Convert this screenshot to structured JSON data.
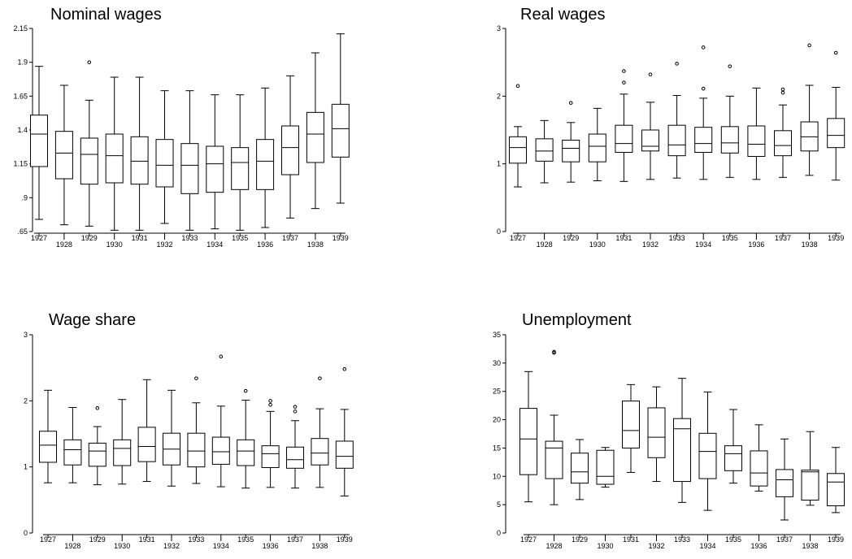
{
  "chart_data": [
    {
      "type": "box",
      "title": "Nominal wages",
      "categories": [
        "1927",
        "1928",
        "1929",
        "1930",
        "1931",
        "1932",
        "1933",
        "1934",
        "1935",
        "1936",
        "1937",
        "1938",
        "1939"
      ],
      "y_ticks": [
        ".65",
        ".9",
        "1.15",
        "1.4",
        "1.65",
        "1.9",
        "2.15"
      ],
      "ylim": [
        0.65,
        2.15
      ],
      "boxes": [
        {
          "min": 0.74,
          "q1": 1.13,
          "median": 1.37,
          "q3": 1.51,
          "max": 1.87,
          "outliers": []
        },
        {
          "min": 0.7,
          "q1": 1.04,
          "median": 1.23,
          "q3": 1.39,
          "max": 1.73,
          "outliers": []
        },
        {
          "min": 0.69,
          "q1": 1.0,
          "median": 1.22,
          "q3": 1.34,
          "max": 1.62,
          "outliers": [
            1.9
          ]
        },
        {
          "min": 0.66,
          "q1": 1.01,
          "median": 1.21,
          "q3": 1.37,
          "max": 1.79,
          "outliers": []
        },
        {
          "min": 0.66,
          "q1": 1.0,
          "median": 1.17,
          "q3": 1.35,
          "max": 1.79,
          "outliers": []
        },
        {
          "min": 0.71,
          "q1": 0.98,
          "median": 1.14,
          "q3": 1.33,
          "max": 1.69,
          "outliers": []
        },
        {
          "min": 0.66,
          "q1": 0.93,
          "median": 1.14,
          "q3": 1.3,
          "max": 1.69,
          "outliers": []
        },
        {
          "min": 0.67,
          "q1": 0.94,
          "median": 1.15,
          "q3": 1.28,
          "max": 1.66,
          "outliers": []
        },
        {
          "min": 0.66,
          "q1": 0.96,
          "median": 1.16,
          "q3": 1.27,
          "max": 1.66,
          "outliers": []
        },
        {
          "min": 0.68,
          "q1": 0.96,
          "median": 1.17,
          "q3": 1.33,
          "max": 1.71,
          "outliers": []
        },
        {
          "min": 0.75,
          "q1": 1.07,
          "median": 1.27,
          "q3": 1.43,
          "max": 1.8,
          "outliers": []
        },
        {
          "min": 0.82,
          "q1": 1.16,
          "median": 1.37,
          "q3": 1.53,
          "max": 1.97,
          "outliers": []
        },
        {
          "min": 0.86,
          "q1": 1.2,
          "median": 1.41,
          "q3": 1.59,
          "max": 2.11,
          "outliers": []
        }
      ]
    },
    {
      "type": "box",
      "title": "Real wages",
      "categories": [
        "1927",
        "1928",
        "1929",
        "1930",
        "1931",
        "1932",
        "1933",
        "1934",
        "1935",
        "1936",
        "1937",
        "1938",
        "1939"
      ],
      "y_ticks": [
        "0",
        "1",
        "2",
        "3"
      ],
      "ylim": [
        0,
        3
      ],
      "boxes": [
        {
          "min": 0.66,
          "q1": 1.01,
          "median": 1.24,
          "q3": 1.4,
          "max": 1.55,
          "outliers": [
            2.15
          ]
        },
        {
          "min": 0.72,
          "q1": 1.04,
          "median": 1.19,
          "q3": 1.37,
          "max": 1.64,
          "outliers": []
        },
        {
          "min": 0.73,
          "q1": 1.03,
          "median": 1.23,
          "q3": 1.35,
          "max": 1.61,
          "outliers": [
            1.9
          ]
        },
        {
          "min": 0.75,
          "q1": 1.03,
          "median": 1.26,
          "q3": 1.44,
          "max": 1.82,
          "outliers": []
        },
        {
          "min": 0.74,
          "q1": 1.17,
          "median": 1.3,
          "q3": 1.57,
          "max": 2.03,
          "outliers": [
            2.2,
            2.37
          ]
        },
        {
          "min": 0.77,
          "q1": 1.19,
          "median": 1.26,
          "q3": 1.5,
          "max": 1.91,
          "outliers": [
            2.32
          ]
        },
        {
          "min": 0.79,
          "q1": 1.12,
          "median": 1.28,
          "q3": 1.57,
          "max": 2.01,
          "outliers": [
            2.48
          ]
        },
        {
          "min": 0.77,
          "q1": 1.17,
          "median": 1.3,
          "q3": 1.54,
          "max": 1.97,
          "outliers": [
            2.11,
            2.72
          ]
        },
        {
          "min": 0.8,
          "q1": 1.16,
          "median": 1.31,
          "q3": 1.55,
          "max": 2.0,
          "outliers": [
            2.44
          ]
        },
        {
          "min": 0.77,
          "q1": 1.11,
          "median": 1.29,
          "q3": 1.56,
          "max": 2.12,
          "outliers": []
        },
        {
          "min": 0.8,
          "q1": 1.12,
          "median": 1.27,
          "q3": 1.49,
          "max": 1.87,
          "outliers": [
            2.05,
            2.1
          ]
        },
        {
          "min": 0.83,
          "q1": 1.19,
          "median": 1.4,
          "q3": 1.62,
          "max": 2.16,
          "outliers": [
            2.75
          ]
        },
        {
          "min": 0.76,
          "q1": 1.24,
          "median": 1.42,
          "q3": 1.67,
          "max": 2.13,
          "outliers": [
            2.64
          ]
        }
      ]
    },
    {
      "type": "box",
      "title": "Wage share",
      "categories": [
        "1927",
        "1928",
        "1929",
        "1930",
        "1931",
        "1932",
        "1933",
        "1934",
        "1935",
        "1936",
        "1937",
        "1938",
        "1939"
      ],
      "y_ticks": [
        "0",
        "1",
        "2",
        "3"
      ],
      "ylim": [
        0,
        3
      ],
      "boxes": [
        {
          "min": 0.76,
          "q1": 1.07,
          "median": 1.33,
          "q3": 1.54,
          "max": 2.16,
          "outliers": []
        },
        {
          "min": 0.76,
          "q1": 1.03,
          "median": 1.26,
          "q3": 1.41,
          "max": 1.9,
          "outliers": []
        },
        {
          "min": 0.73,
          "q1": 1.01,
          "median": 1.24,
          "q3": 1.36,
          "max": 1.61,
          "outliers": [
            1.89
          ]
        },
        {
          "min": 0.74,
          "q1": 1.02,
          "median": 1.28,
          "q3": 1.41,
          "max": 2.02,
          "outliers": []
        },
        {
          "min": 0.78,
          "q1": 1.08,
          "median": 1.31,
          "q3": 1.6,
          "max": 2.32,
          "outliers": []
        },
        {
          "min": 0.71,
          "q1": 1.03,
          "median": 1.27,
          "q3": 1.51,
          "max": 2.16,
          "outliers": []
        },
        {
          "min": 0.75,
          "q1": 1.0,
          "median": 1.24,
          "q3": 1.51,
          "max": 1.97,
          "outliers": [
            2.34
          ]
        },
        {
          "min": 0.7,
          "q1": 1.04,
          "median": 1.23,
          "q3": 1.45,
          "max": 1.92,
          "outliers": [
            2.67
          ]
        },
        {
          "min": 0.68,
          "q1": 1.02,
          "median": 1.24,
          "q3": 1.41,
          "max": 2.01,
          "outliers": [
            2.15
          ]
        },
        {
          "min": 0.69,
          "q1": 0.99,
          "median": 1.2,
          "q3": 1.32,
          "max": 1.84,
          "outliers": [
            1.94,
            2.0
          ]
        },
        {
          "min": 0.68,
          "q1": 0.98,
          "median": 1.11,
          "q3": 1.3,
          "max": 1.7,
          "outliers": [
            1.84,
            1.91
          ]
        },
        {
          "min": 0.69,
          "q1": 1.03,
          "median": 1.21,
          "q3": 1.43,
          "max": 1.88,
          "outliers": [
            2.34
          ]
        },
        {
          "min": 0.56,
          "q1": 0.98,
          "median": 1.16,
          "q3": 1.39,
          "max": 1.87,
          "outliers": [
            2.48
          ]
        }
      ]
    },
    {
      "type": "box",
      "title": "Unemployment",
      "categories": [
        "1927",
        "1928",
        "1929",
        "1930",
        "1931",
        "1932",
        "1933",
        "1934",
        "1935",
        "1936",
        "1937",
        "1938",
        "1939"
      ],
      "y_ticks": [
        "0",
        "5",
        "10",
        "15",
        "20",
        "25",
        "30",
        "35"
      ],
      "ylim": [
        0,
        35
      ],
      "boxes": [
        {
          "min": 5.5,
          "q1": 10.3,
          "median": 16.6,
          "q3": 22.0,
          "max": 28.5,
          "outliers": []
        },
        {
          "min": 5.0,
          "q1": 9.6,
          "median": 15.0,
          "q3": 16.2,
          "max": 20.8,
          "outliers": [
            31.8,
            32.0
          ]
        },
        {
          "min": 5.9,
          "q1": 8.8,
          "median": 10.8,
          "q3": 14.1,
          "max": 16.5,
          "outliers": []
        },
        {
          "min": 8.1,
          "q1": 8.6,
          "median": 10.0,
          "q3": 14.6,
          "max": 15.1,
          "outliers": []
        },
        {
          "min": 10.7,
          "q1": 15.0,
          "median": 18.1,
          "q3": 23.3,
          "max": 26.2,
          "outliers": []
        },
        {
          "min": 9.1,
          "q1": 13.3,
          "median": 16.9,
          "q3": 22.1,
          "max": 25.8,
          "outliers": []
        },
        {
          "min": 5.4,
          "q1": 9.1,
          "median": 18.4,
          "q3": 20.2,
          "max": 27.3,
          "outliers": []
        },
        {
          "min": 4.0,
          "q1": 9.6,
          "median": 14.4,
          "q3": 17.6,
          "max": 24.9,
          "outliers": []
        },
        {
          "min": 8.8,
          "q1": 11.0,
          "median": 14.0,
          "q3": 15.4,
          "max": 21.8,
          "outliers": []
        },
        {
          "min": 7.4,
          "q1": 8.3,
          "median": 10.6,
          "q3": 14.5,
          "max": 19.1,
          "outliers": []
        },
        {
          "min": 2.3,
          "q1": 6.4,
          "median": 9.4,
          "q3": 11.2,
          "max": 16.6,
          "outliers": []
        },
        {
          "min": 4.9,
          "q1": 5.8,
          "median": 10.8,
          "q3": 11.1,
          "max": 17.9,
          "outliers": []
        },
        {
          "min": 3.6,
          "q1": 4.8,
          "median": 9.0,
          "q3": 10.5,
          "max": 15.1,
          "outliers": []
        }
      ]
    }
  ]
}
